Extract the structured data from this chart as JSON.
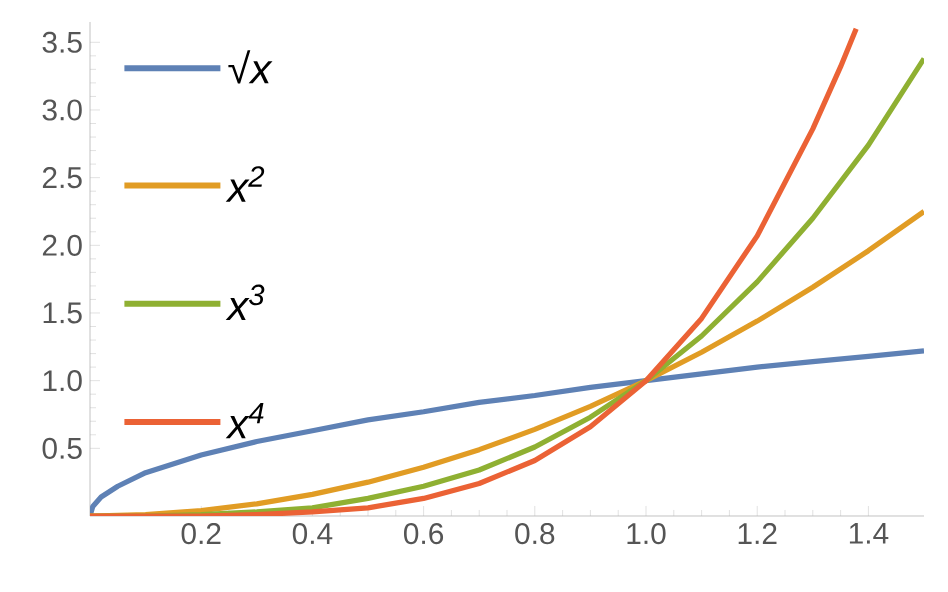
{
  "chart_data": {
    "type": "line",
    "legend": "left",
    "grid": false,
    "marker": "none",
    "line_style": "solid",
    "xlim": [
      0,
      1.5
    ],
    "ylim": [
      0,
      3.65
    ],
    "xticks": [
      0.2,
      0.4,
      0.6,
      0.8,
      {
        "value": 1.0,
        "label": "1.0"
      },
      1.2,
      1.4
    ],
    "yticks": [
      0.5,
      {
        "value": 1.0,
        "label": "1.0"
      },
      1.5,
      {
        "value": 2.0,
        "label": "2.0"
      },
      2.5,
      {
        "value": 3.0,
        "label": "3.0"
      },
      3.5
    ],
    "series": [
      {
        "name": "√x",
        "color": "#5e81b5",
        "x": [
          0,
          0.005,
          0.02,
          0.05,
          0.1,
          0.2,
          0.3,
          0.4,
          0.5,
          0.6,
          0.7,
          0.8,
          0.9,
          1.0,
          1.1,
          1.2,
          1.3,
          1.4,
          1.5
        ],
        "values": [
          0,
          0.07,
          0.14,
          0.22,
          0.32,
          0.45,
          0.55,
          0.63,
          0.71,
          0.77,
          0.84,
          0.89,
          0.95,
          1.0,
          1.05,
          1.1,
          1.14,
          1.18,
          1.22
        ]
      },
      {
        "name": "x$^{2}$",
        "color": "#e19c24",
        "x": [
          0,
          0.1,
          0.2,
          0.3,
          0.4,
          0.5,
          0.6,
          0.7,
          0.8,
          0.9,
          1.0,
          1.1,
          1.2,
          1.3,
          1.4,
          1.5
        ],
        "values": [
          0,
          0.01,
          0.04,
          0.09,
          0.16,
          0.25,
          0.36,
          0.49,
          0.64,
          0.81,
          1.0,
          1.21,
          1.44,
          1.69,
          1.96,
          2.25
        ]
      },
      {
        "name": "x$^{3}$",
        "color": "#8fb032",
        "x": [
          0,
          0.1,
          0.2,
          0.3,
          0.4,
          0.5,
          0.6,
          0.7,
          0.8,
          0.9,
          1.0,
          1.1,
          1.2,
          1.3,
          1.4,
          1.5
        ],
        "values": [
          0,
          0,
          0.01,
          0.03,
          0.06,
          0.13,
          0.22,
          0.34,
          0.51,
          0.73,
          1.0,
          1.33,
          1.73,
          2.2,
          2.74,
          3.38
        ]
      },
      {
        "name": "x$^{4}$",
        "color": "#eb6235",
        "x": [
          0,
          0.1,
          0.2,
          0.3,
          0.4,
          0.5,
          0.6,
          0.7,
          0.8,
          0.9,
          1.0,
          1.1,
          1.2,
          1.3,
          1.35,
          1.378
        ],
        "values": [
          0,
          0,
          0,
          0.01,
          0.03,
          0.06,
          0.13,
          0.24,
          0.41,
          0.66,
          1.0,
          1.46,
          2.07,
          2.86,
          3.32,
          3.6
        ]
      }
    ]
  }
}
